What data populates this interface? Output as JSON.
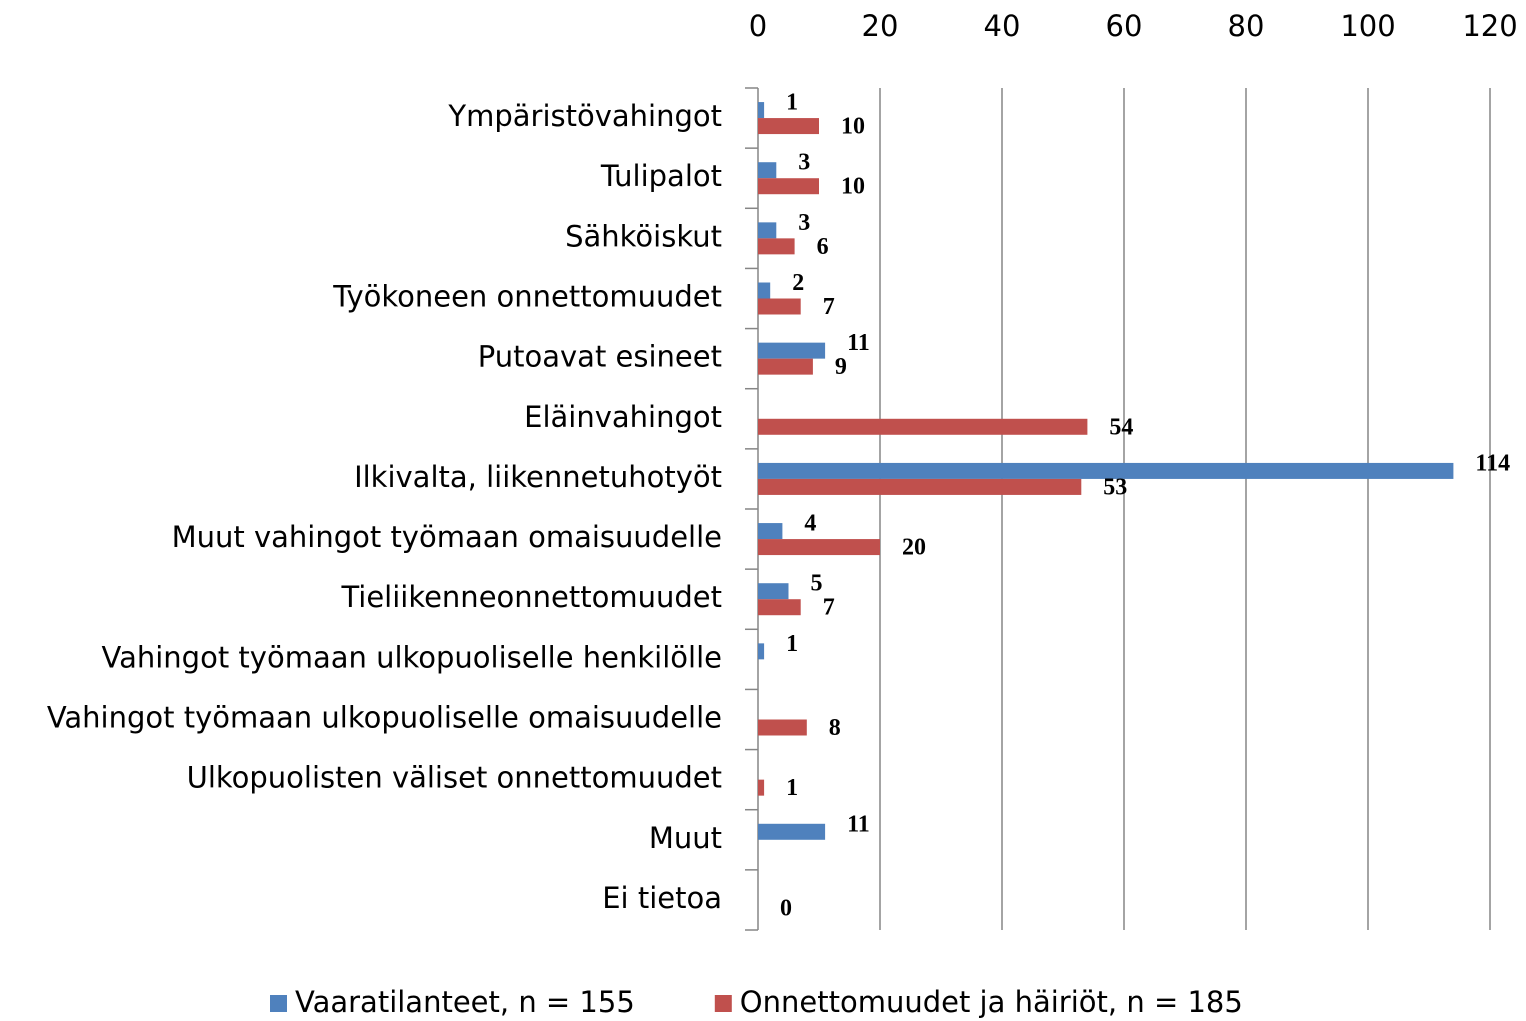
{
  "chart_data": {
    "type": "hbar",
    "categories": [
      "Ympäristövahingot",
      "Tulipalot",
      "Sähköiskut",
      "Työkoneen onnettomuudet",
      "Putoavat esineet",
      "Eläinvahingot",
      "Ilkivalta, liikennetuhotyöt",
      "Muut vahingot työmaan omaisuudelle",
      "Tieliikenneonnettomuudet",
      "Vahingot työmaan ulkopuoliselle henkilölle",
      "Vahingot työmaan ulkopuoliselle omaisuudelle",
      "Ulkopuolisten väliset onnettomuudet",
      "Muut",
      "Ei tietoa"
    ],
    "series": [
      {
        "name": "Vaaratilanteet, n = 155",
        "color": "#4f81bd",
        "values": [
          1,
          3,
          3,
          2,
          11,
          null,
          114,
          4,
          5,
          1,
          null,
          null,
          11,
          null
        ]
      },
      {
        "name": "Onnettomuudet ja häiriöt, n = 185",
        "color": "#c0504d",
        "values": [
          10,
          10,
          6,
          7,
          9,
          54,
          53,
          20,
          7,
          null,
          8,
          1,
          null,
          0
        ]
      }
    ],
    "xlim": [
      0,
      120
    ],
    "xticks": [
      0,
      20,
      40,
      60,
      80,
      100,
      120
    ],
    "grid": true,
    "legend": "bottom"
  }
}
